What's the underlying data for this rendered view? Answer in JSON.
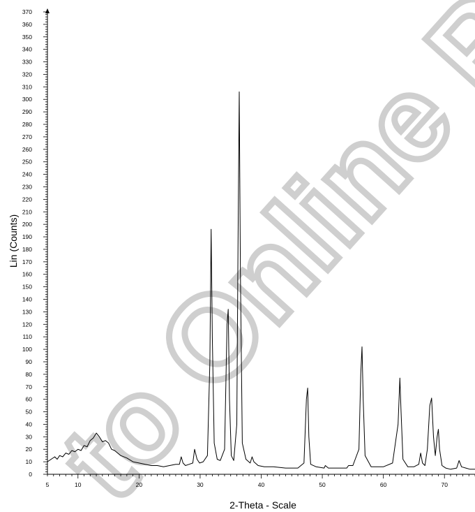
{
  "chart_data": {
    "type": "line",
    "title": "",
    "xlabel": "2-Theta - Scale",
    "ylabel": "Lin (Counts)",
    "xlim": [
      5,
      75
    ],
    "ylim": [
      0,
      370
    ],
    "x_ticks": [
      5,
      10,
      20,
      30,
      40,
      50,
      60,
      70
    ],
    "y_ticks": [
      0,
      10,
      20,
      30,
      40,
      50,
      60,
      70,
      80,
      90,
      100,
      110,
      120,
      130,
      140,
      150,
      160,
      170,
      180,
      190,
      200,
      210,
      220,
      230,
      240,
      250,
      260,
      270,
      280,
      290,
      300,
      310,
      320,
      330,
      340,
      350,
      360,
      370
    ],
    "grid": false,
    "series": [
      {
        "x": [
          5.0,
          5.6,
          6.2,
          6.6,
          7.0,
          7.5,
          8.0,
          8.5,
          9.0,
          9.5,
          10.0,
          10.5,
          11.0,
          11.5,
          12.0,
          12.5,
          13.0,
          13.5,
          14.0,
          14.5,
          15.0,
          15.5,
          16.0,
          17.0,
          18.0,
          19.0,
          20.0,
          21.0,
          22.0,
          23.0,
          24.0,
          25.0,
          26.0,
          26.6,
          26.9,
          27.2,
          27.6,
          28.2,
          28.8,
          29.1,
          29.5,
          29.9,
          30.5,
          31.2,
          31.6,
          31.8,
          32.0,
          32.3,
          32.8,
          33.3,
          34.0,
          34.4,
          34.6,
          34.8,
          35.1,
          35.5,
          36.0,
          36.2,
          36.4,
          36.6,
          36.9,
          37.5,
          38.2,
          38.5,
          38.8,
          39.5,
          40.5,
          42.0,
          44.0,
          46.0,
          47.0,
          47.4,
          47.6,
          47.8,
          48.1,
          49.0,
          50.3,
          50.5,
          51.0,
          53.0,
          54.0,
          54.3,
          55.0,
          56.0,
          56.3,
          56.5,
          56.7,
          57.0,
          58.0,
          60.0,
          61.5,
          62.4,
          62.7,
          62.9,
          63.2,
          64.0,
          65.0,
          65.8,
          66.1,
          66.4,
          66.8,
          67.2,
          67.6,
          67.9,
          68.2,
          68.5,
          68.8,
          69.0,
          69.2,
          69.6,
          70.2,
          71.0,
          72.0,
          72.4,
          72.8,
          73.5,
          74.2,
          75.0
        ],
        "y": [
          10,
          12,
          14,
          12,
          15,
          14,
          17,
          16,
          19,
          18,
          20,
          19,
          23,
          22,
          27,
          29,
          33,
          30,
          26,
          27,
          25,
          20,
          19,
          15,
          13,
          10,
          9,
          8,
          7,
          7,
          6,
          7,
          8,
          8,
          14,
          9,
          7,
          8,
          9,
          20,
          12,
          9,
          10,
          15,
          90,
          196,
          110,
          25,
          12,
          11,
          20,
          120,
          132,
          60,
          15,
          11,
          40,
          180,
          306,
          160,
          25,
          12,
          9,
          14,
          10,
          7,
          6,
          6,
          5,
          5,
          9,
          60,
          69,
          30,
          8,
          6,
          5,
          7,
          5,
          5,
          5,
          7,
          7,
          20,
          80,
          102,
          60,
          15,
          6,
          6,
          9,
          40,
          77,
          50,
          12,
          6,
          6,
          8,
          17,
          9,
          7,
          20,
          55,
          61,
          30,
          15,
          30,
          36,
          20,
          7,
          5,
          4,
          5,
          11,
          6,
          5,
          4,
          4
        ]
      }
    ]
  },
  "watermark": "to Online Pu"
}
